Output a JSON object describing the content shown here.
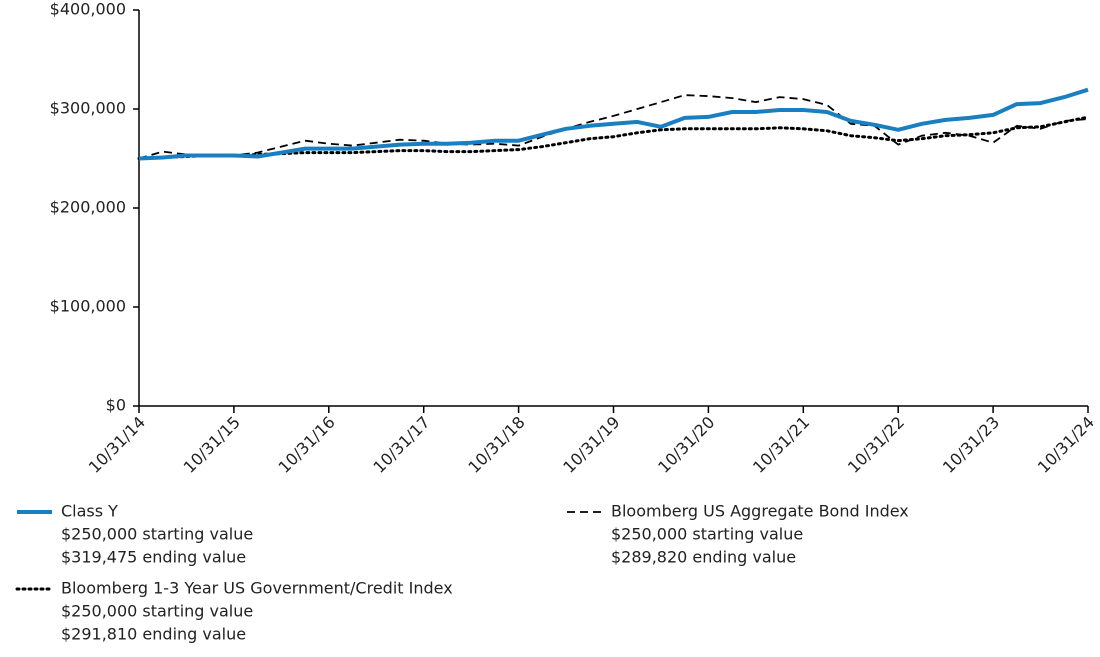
{
  "chart_data": {
    "type": "line",
    "categories": [
      "10/31/14",
      null,
      null,
      null,
      "10/31/15",
      null,
      null,
      null,
      "10/31/16",
      null,
      null,
      null,
      "10/31/17",
      null,
      null,
      null,
      "10/31/18",
      null,
      null,
      null,
      "10/31/19",
      null,
      null,
      null,
      "10/31/20",
      null,
      null,
      null,
      "10/31/21",
      null,
      null,
      null,
      "10/31/22",
      null,
      null,
      null,
      "10/31/23",
      null,
      null,
      null,
      "10/31/24"
    ],
    "ylim": [
      0,
      400000
    ],
    "yticks": [
      {
        "value": 0,
        "label": "$0"
      },
      {
        "value": 100000,
        "label": "$100,000"
      },
      {
        "value": 200000,
        "label": "$200,000"
      },
      {
        "value": 300000,
        "label": "$300,000"
      },
      {
        "value": 400000,
        "label": "$400,000"
      }
    ],
    "grid": false,
    "series": [
      {
        "name": "Class Y",
        "color": "#1a7fc1",
        "style": "solid",
        "legend_lines": [
          "$250,000 starting value",
          "$319,475 ending value"
        ],
        "values": [
          250000,
          251000,
          253000,
          253000,
          253000,
          252000,
          256000,
          260000,
          260000,
          260000,
          262000,
          264000,
          265000,
          265000,
          266000,
          268000,
          268000,
          274000,
          280000,
          283000,
          285000,
          287000,
          282000,
          291000,
          292000,
          297000,
          297000,
          299000,
          299000,
          297000,
          288000,
          284000,
          279000,
          285000,
          289000,
          291000,
          294000,
          305000,
          306000,
          312000,
          319475
        ]
      },
      {
        "name": "Bloomberg US Aggregate Bond Index",
        "color": "#000000",
        "style": "dashed",
        "legend_lines": [
          "$250,000 starting value",
          "$289,820 ending value"
        ],
        "values": [
          250000,
          257000,
          254000,
          252000,
          253000,
          256000,
          262000,
          268000,
          265000,
          263000,
          266000,
          269000,
          268000,
          265000,
          264000,
          265000,
          263000,
          272000,
          280000,
          287000,
          293000,
          300000,
          307000,
          314000,
          313000,
          311000,
          307000,
          312000,
          310000,
          304000,
          285000,
          283000,
          264000,
          273000,
          276000,
          273000,
          266000,
          283000,
          280000,
          288000,
          289820
        ]
      },
      {
        "name": "Bloomberg 1-3 Year US Government/Credit Index",
        "color": "#000000",
        "style": "dotted",
        "legend_lines": [
          "$250,000 starting value",
          "$291,810 ending value"
        ],
        "values": [
          250000,
          251000,
          252000,
          253000,
          253000,
          254000,
          255000,
          256000,
          256000,
          256000,
          257000,
          258000,
          258000,
          257000,
          257000,
          258000,
          259000,
          262000,
          266000,
          270000,
          272000,
          276000,
          279000,
          280000,
          280000,
          280000,
          280000,
          281000,
          280000,
          278000,
          273000,
          271000,
          268000,
          270000,
          273000,
          274000,
          276000,
          281000,
          282000,
          287000,
          291810
        ]
      }
    ]
  }
}
